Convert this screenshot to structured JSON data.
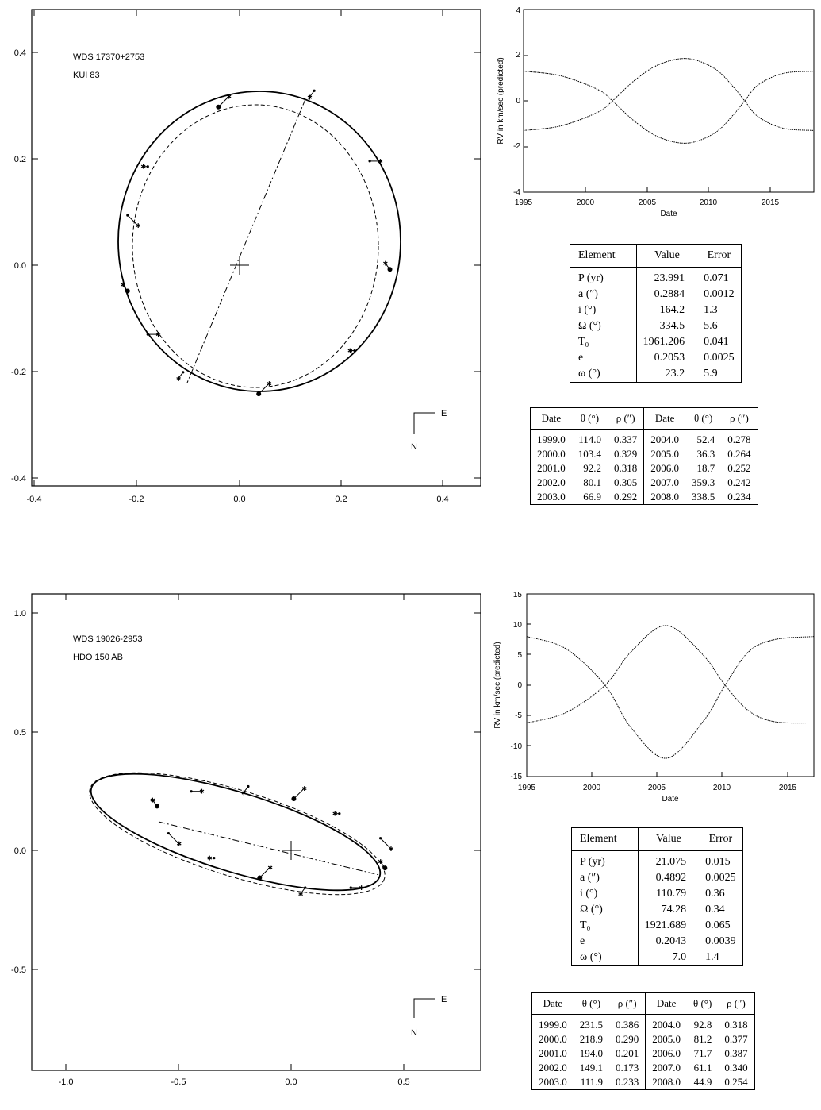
{
  "systems": [
    {
      "orbit_plot": {
        "wds": "WDS 17370+2753",
        "name": "KUI  83",
        "xticks": [
          "-0.4",
          "-0.2",
          "0.0",
          "0.2",
          "0.4"
        ],
        "yticks": [
          "0.4",
          "0.2",
          "0.0",
          "-0.2",
          "-0.4"
        ],
        "compass_e": "E",
        "compass_n": "N"
      },
      "rv_plot": {
        "ylabel": "RV in km/sec (predicted)",
        "xlabel": "Date",
        "xticks": [
          "1995",
          "2000",
          "2005",
          "2010",
          "2015"
        ],
        "yticks": [
          "4",
          "2",
          "0",
          "-2",
          "-4"
        ]
      },
      "elements": {
        "headers": [
          "Element",
          "Value",
          "Error"
        ],
        "rows": [
          [
            "P (yr)",
            "23.991",
            "0.071"
          ],
          [
            "a (″)",
            "0.2884",
            "0.0012"
          ],
          [
            "i (°)",
            "164.2",
            "1.3"
          ],
          [
            "Ω (°)",
            "334.5",
            "5.6"
          ],
          [
            "T₀",
            "1961.206",
            "0.041"
          ],
          [
            "e",
            "0.2053",
            "0.0025"
          ],
          [
            "ω (°)",
            "23.2",
            "5.9"
          ]
        ]
      },
      "ephemeris": {
        "headers": [
          "Date",
          "θ (°)",
          "ρ (″)",
          "Date",
          "θ (°)",
          "ρ (″)"
        ],
        "rows": [
          [
            "1999.0",
            "114.0",
            "0.337",
            "2004.0",
            "52.4",
            "0.278"
          ],
          [
            "2000.0",
            "103.4",
            "0.329",
            "2005.0",
            "36.3",
            "0.264"
          ],
          [
            "2001.0",
            "92.2",
            "0.318",
            "2006.0",
            "18.7",
            "0.252"
          ],
          [
            "2002.0",
            "80.1",
            "0.305",
            "2007.0",
            "359.3",
            "0.242"
          ],
          [
            "2003.0",
            "66.9",
            "0.292",
            "2008.0",
            "338.5",
            "0.234"
          ]
        ]
      }
    },
    {
      "orbit_plot": {
        "wds": "WDS 19026-2953",
        "name": "HDO 150 AB",
        "xticks": [
          "-1.0",
          "-0.5",
          "0.0",
          "0.5"
        ],
        "yticks": [
          "1.0",
          "0.5",
          "0.0",
          "-0.5"
        ],
        "compass_e": "E",
        "compass_n": "N"
      },
      "rv_plot": {
        "ylabel": "RV in km/sec (predicted)",
        "xlabel": "Date",
        "xticks": [
          "1995",
          "2000",
          "2005",
          "2010",
          "2015"
        ],
        "yticks": [
          "15",
          "10",
          "5",
          "0",
          "-5",
          "-10",
          "-15"
        ]
      },
      "elements": {
        "headers": [
          "Element",
          "Value",
          "Error"
        ],
        "rows": [
          [
            "P (yr)",
            "21.075",
            "0.015"
          ],
          [
            "a (″)",
            "0.4892",
            "0.0025"
          ],
          [
            "i (°)",
            "110.79",
            "0.36"
          ],
          [
            "Ω (°)",
            "74.28",
            "0.34"
          ],
          [
            "T₀",
            "1921.689",
            "0.065"
          ],
          [
            "e",
            "0.2043",
            "0.0039"
          ],
          [
            "ω (°)",
            "7.0",
            "1.4"
          ]
        ]
      },
      "ephemeris": {
        "headers": [
          "Date",
          "θ (°)",
          "ρ (″)",
          "Date",
          "θ (°)",
          "ρ (″)"
        ],
        "rows": [
          [
            "1999.0",
            "231.5",
            "0.386",
            "2004.0",
            "92.8",
            "0.318"
          ],
          [
            "2000.0",
            "218.9",
            "0.290",
            "2005.0",
            "81.2",
            "0.377"
          ],
          [
            "2001.0",
            "194.0",
            "0.201",
            "2006.0",
            "71.7",
            "0.387"
          ],
          [
            "2002.0",
            "149.1",
            "0.173",
            "2007.0",
            "61.1",
            "0.340"
          ],
          [
            "2003.0",
            "111.9",
            "0.233",
            "2008.0",
            "44.9",
            "0.254"
          ]
        ]
      }
    }
  ],
  "chart_data": [
    {
      "type": "scatter",
      "title": "WDS 17370+2753 KUI 83",
      "xlabel": "",
      "ylabel": "",
      "xlim": [
        -0.42,
        0.47
      ],
      "ylim": [
        -0.41,
        0.47
      ],
      "grid": false,
      "series": [
        {
          "values": [
            [
              0.29,
              -0.01
            ],
            [
              0.25,
              0.19
            ],
            [
              0.14,
              0.32
            ],
            [
              -0.05,
              0.29
            ],
            [
              -0.19,
              0.18
            ],
            [
              -0.23,
              0.09
            ],
            [
              -0.23,
              -0.05
            ],
            [
              -0.19,
              -0.13
            ],
            [
              -0.12,
              -0.2
            ],
            [
              0.03,
              -0.24
            ],
            [
              0.22,
              -0.16
            ]
          ]
        }
      ]
    },
    {
      "type": "line",
      "xlabel": "Date",
      "ylabel": "RV in km/sec (predicted)",
      "xlim": [
        1995,
        2018.5
      ],
      "ylim": [
        -4,
        4
      ],
      "series": [
        {
          "x": [
            1995,
            1998,
            2001,
            2002.2,
            2004,
            2006,
            2008.3,
            2010.5,
            2012,
            2012.9,
            2014,
            2016,
            2018.5
          ],
          "values": [
            1.3,
            1.1,
            0.5,
            0,
            -0.9,
            -1.6,
            -1.85,
            -1.4,
            -0.6,
            0,
            0.7,
            1.2,
            1.3
          ]
        },
        {
          "x": [
            1995,
            1998,
            2001,
            2002.2,
            2004,
            2006,
            2008.3,
            2010.5,
            2012,
            2012.9,
            2014,
            2016,
            2018.5
          ],
          "values": [
            -1.3,
            -1.1,
            -0.5,
            0,
            0.9,
            1.6,
            1.85,
            1.4,
            0.6,
            0,
            -0.7,
            -1.2,
            -1.3
          ]
        }
      ]
    },
    {
      "type": "scatter",
      "title": "WDS 19026-2953 HDO 150 AB",
      "xlabel": "",
      "ylabel": "",
      "xlim": [
        -1.15,
        0.82
      ],
      "ylim": [
        -0.9,
        1.03
      ],
      "grid": false,
      "series": [
        {
          "values": [
            [
              -0.6,
              0.17
            ],
            [
              -0.45,
              0.23
            ],
            [
              -0.2,
              0.25
            ],
            [
              0.0,
              0.2
            ],
            [
              0.2,
              0.14
            ],
            [
              0.38,
              0.04
            ],
            [
              0.4,
              -0.08
            ],
            [
              0.25,
              -0.16
            ],
            [
              0.05,
              -0.16
            ],
            [
              -0.15,
              -0.12
            ],
            [
              -0.35,
              -0.04
            ],
            [
              -0.55,
              0.06
            ]
          ]
        }
      ]
    },
    {
      "type": "line",
      "xlabel": "Date",
      "ylabel": "RV in km/sec (predicted)",
      "xlim": [
        1995,
        2017
      ],
      "ylim": [
        -15,
        15
      ],
      "series": [
        {
          "x": [
            1995,
            1998,
            2001,
            2003,
            2005.7,
            2008.5,
            2010.2,
            2012,
            2014,
            2017
          ],
          "values": [
            8,
            6,
            0,
            -7,
            -12,
            -6,
            0,
            5.5,
            7.5,
            8
          ]
        },
        {
          "x": [
            1995,
            1998,
            2001,
            2003,
            2005.7,
            2008.5,
            2010.2,
            2012,
            2014,
            2017
          ],
          "values": [
            -6.2,
            -4.5,
            0,
            5.5,
            9.8,
            5,
            0,
            -4.2,
            -6,
            -6.2
          ]
        }
      ]
    }
  ]
}
